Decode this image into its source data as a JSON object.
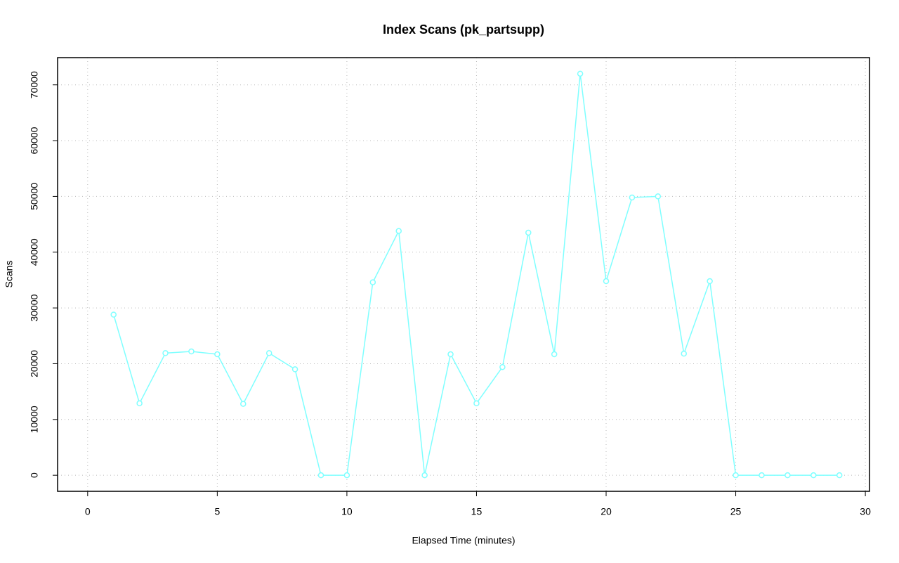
{
  "chart_data": {
    "type": "line",
    "title": "Index Scans (pk_partsupp)",
    "x_label": "Elapsed Time (minutes)",
    "y_label": "Scans",
    "x": [
      1,
      2,
      3,
      4,
      5,
      6,
      7,
      8,
      9,
      10,
      11,
      12,
      13,
      14,
      15,
      16,
      17,
      18,
      19,
      20,
      21,
      22,
      23,
      24,
      25,
      26,
      27,
      28,
      29
    ],
    "series": [
      {
        "name": "pk_partsupp",
        "color": "#7fffff",
        "values": [
          28800,
          12900,
          21900,
          22200,
          21700,
          12800,
          21900,
          19000,
          0,
          0,
          34600,
          43800,
          0,
          21700,
          12900,
          19400,
          43500,
          21700,
          72000,
          34800,
          49800,
          50000,
          21800,
          34800,
          0,
          0,
          0,
          0,
          0
        ]
      }
    ],
    "xlim": [
      -1.16,
      30.16
    ],
    "ylim": [
      -2880,
      74880
    ],
    "xticks": [
      0,
      5,
      10,
      15,
      20,
      25,
      30
    ],
    "yticks": [
      0,
      10000,
      20000,
      30000,
      40000,
      50000,
      60000,
      70000
    ],
    "grid": true
  }
}
